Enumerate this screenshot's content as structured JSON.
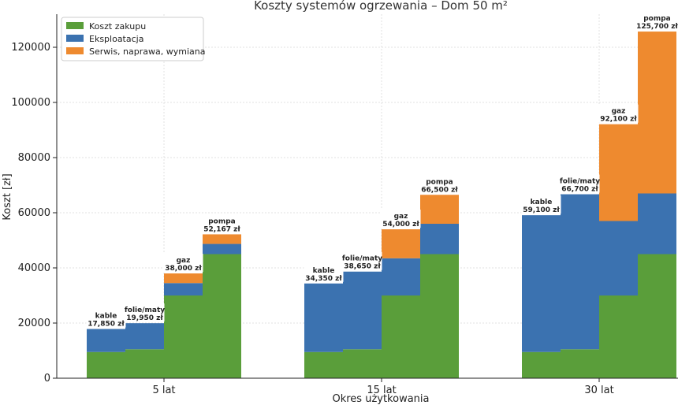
{
  "chart_data": {
    "type": "bar",
    "stacked": true,
    "title": "Koszty systemów ogrzewania – Dom 50 m²",
    "xlabel": "Okres użytkowania",
    "ylabel": "Koszt [zł]",
    "ylim": [
      0,
      132000
    ],
    "yticks": [
      0,
      20000,
      40000,
      60000,
      80000,
      100000,
      120000
    ],
    "grid": true,
    "legend_position": "top-left",
    "groups": [
      "5 lat",
      "15 lat",
      "30 lat"
    ],
    "systems": [
      "kable",
      "folie/maty",
      "gaz",
      "pompa"
    ],
    "series": [
      {
        "name": "Koszt zakupu",
        "color": "#5a9e3a",
        "values": [
          [
            9500,
            10500,
            30000,
            45000
          ],
          [
            9500,
            10500,
            30000,
            45000
          ],
          [
            9500,
            10500,
            30000,
            45000
          ]
        ]
      },
      {
        "name": "Eksploatacja",
        "color": "#3b72b0",
        "values": [
          [
            8350,
            9450,
            4500,
            3700
          ],
          [
            24850,
            28150,
            13500,
            11000
          ],
          [
            49600,
            56200,
            27000,
            22000
          ]
        ]
      },
      {
        "name": "Serwis, naprawa, wymiana",
        "color": "#ee8a2f",
        "values": [
          [
            0,
            0,
            3500,
            3467
          ],
          [
            0,
            0,
            10500,
            10500
          ],
          [
            0,
            0,
            35100,
            58700
          ]
        ]
      }
    ],
    "totals": [
      [
        17850,
        19950,
        38000,
        52167
      ],
      [
        34350,
        38650,
        54000,
        66500
      ],
      [
        59100,
        66700,
        92100,
        125700
      ]
    ],
    "total_labels": [
      [
        "17,850 zł",
        "19,950 zł",
        "38,000 zł",
        "52,167 zł"
      ],
      [
        "34,350 zł",
        "38,650 zł",
        "54,000 zł",
        "66,500 zł"
      ],
      [
        "59,100 zł",
        "66,700 zł",
        "92,100 zł",
        "125,700 zł"
      ]
    ]
  }
}
